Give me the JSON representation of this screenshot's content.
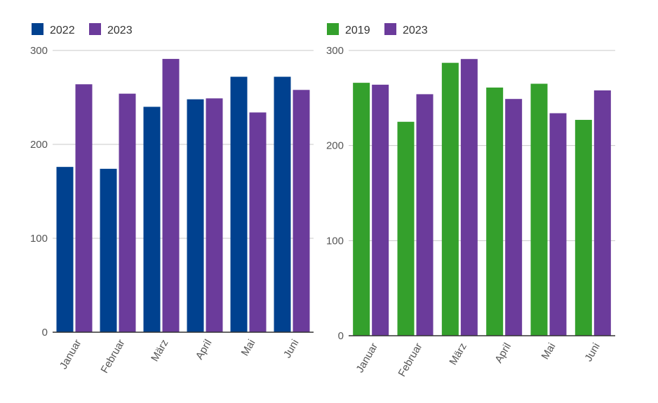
{
  "chart_data": [
    {
      "type": "bar",
      "categories": [
        "Januar",
        "Februar",
        "März",
        "April",
        "Mai",
        "Juni"
      ],
      "series": [
        {
          "name": "2022",
          "values": [
            176,
            174,
            240,
            248,
            272,
            272
          ],
          "color": "#00418f"
        },
        {
          "name": "2023",
          "values": [
            264,
            254,
            291,
            249,
            234,
            258
          ],
          "color": "#6b3b9b"
        }
      ],
      "ylim": [
        0,
        300
      ],
      "yticks": [
        "0",
        "100",
        "200",
        "300"
      ],
      "grid": true,
      "legend": "top-left"
    },
    {
      "type": "bar",
      "categories": [
        "Januar",
        "Februar",
        "März",
        "April",
        "Mai",
        "Juni"
      ],
      "series": [
        {
          "name": "2019",
          "values": [
            266,
            225,
            287,
            261,
            265,
            227
          ],
          "color": "#34a02c"
        },
        {
          "name": "2023",
          "values": [
            264,
            254,
            291,
            249,
            234,
            258
          ],
          "color": "#6b3b9b"
        }
      ],
      "ylim": [
        0,
        300
      ],
      "yticks": [
        "0",
        "100",
        "200",
        "300"
      ],
      "grid": true,
      "legend": "top-left"
    }
  ]
}
